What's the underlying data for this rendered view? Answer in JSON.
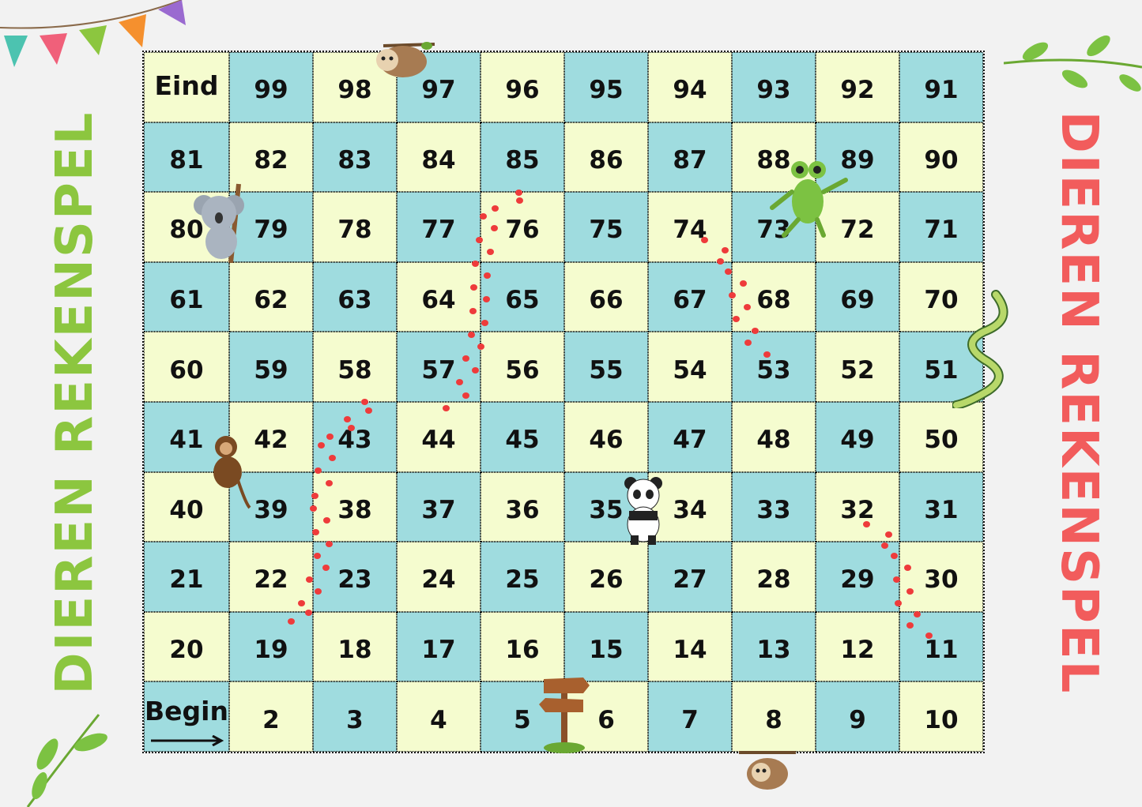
{
  "title_left": "DIEREN REKENSPEL",
  "title_right": "DIEREN REKENSPEL",
  "colors": {
    "yellow_cell": "#f5fccf",
    "teal_cell": "#9fdcdf",
    "title_left": "#8cc63f",
    "title_right": "#f25c5c",
    "paw_trail": "#ee3b3b"
  },
  "board": {
    "rows": [
      [
        "Eind",
        "99",
        "98",
        "97",
        "96",
        "95",
        "94",
        "93",
        "92",
        "91"
      ],
      [
        "81",
        "82",
        "83",
        "84",
        "85",
        "86",
        "87",
        "88",
        "89",
        "90"
      ],
      [
        "80",
        "79",
        "78",
        "77",
        "76",
        "75",
        "74",
        "73",
        "72",
        "71"
      ],
      [
        "61",
        "62",
        "63",
        "64",
        "65",
        "66",
        "67",
        "68",
        "69",
        "70"
      ],
      [
        "60",
        "59",
        "58",
        "57",
        "56",
        "55",
        "54",
        "53",
        "52",
        "51"
      ],
      [
        "41",
        "42",
        "43",
        "44",
        "45",
        "46",
        "47",
        "48",
        "49",
        "50"
      ],
      [
        "40",
        "39",
        "38",
        "37",
        "36",
        "35",
        "34",
        "33",
        "32",
        "31"
      ],
      [
        "21",
        "22",
        "23",
        "24",
        "25",
        "26",
        "27",
        "28",
        "29",
        "30"
      ],
      [
        "20",
        "19",
        "18",
        "17",
        "16",
        "15",
        "14",
        "13",
        "12",
        "11"
      ],
      [
        "Begin",
        "2",
        "3",
        "4",
        "5",
        "6",
        "7",
        "8",
        "9",
        "10"
      ]
    ]
  },
  "icons": [
    "bunting-icon",
    "leaf-icon",
    "sloth-icon",
    "koala-icon",
    "frog-icon",
    "snake-icon",
    "monkey-icon",
    "panda-icon",
    "signpost-icon",
    "arrow-right-icon",
    "paw-print-icon"
  ]
}
